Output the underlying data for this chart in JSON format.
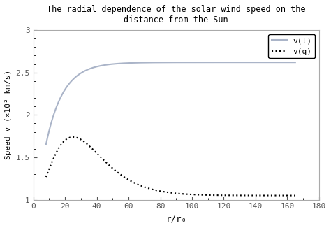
{
  "title_line1": "The radial dependence of the solar wind speed on the",
  "title_line2": "distance from the Sun",
  "xlabel": "r/r₀",
  "ylabel": "Speed v (×10² km/s)",
  "xlim": [
    0,
    180
  ],
  "ylim": [
    1,
    3
  ],
  "xticks": [
    0,
    20,
    40,
    60,
    80,
    100,
    120,
    140,
    160,
    180
  ],
  "yticks": [
    1,
    1.5,
    2,
    2.5,
    3
  ],
  "legend_labels": [
    "v(l)",
    "v(q)"
  ],
  "vl_color": "#aab4c8",
  "vq_color": "#000000",
  "background_color": "#ffffff",
  "r_start": 8,
  "r_end": 165,
  "vl_asym": 2.62,
  "vl_v0": 1.65,
  "vl_v20": 2.3,
  "vq_peak_r": 25,
  "vq_peak_v": 1.74,
  "vq_baseline": 1.05,
  "vq_alpha": 2.5
}
